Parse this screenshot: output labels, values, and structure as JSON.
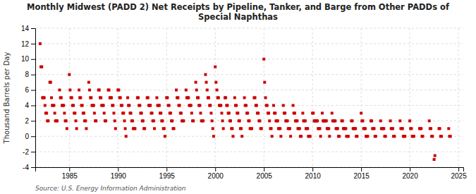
{
  "chart_data": {
    "type": "scatter",
    "title": "Monthly Midwest (PADD 2) Net Receipts by Pipeline, Tanker, and Barge from Other PADDs of\nSpecial Naphthas",
    "ylabel": "Thousand Barrels per Day",
    "source": "Source: U.S. Energy Information Administration",
    "color": "#cc0000",
    "marker": "square",
    "grid": true,
    "xlim": [
      1981.5,
      2025.5
    ],
    "ylim": [
      -4,
      14
    ],
    "xticks": [
      1985,
      1990,
      1995,
      2000,
      2005,
      2010,
      2015,
      2020,
      2025
    ],
    "yticks": [
      -4,
      -2,
      0,
      2,
      4,
      6,
      8,
      10,
      12,
      14
    ],
    "x": [
      1982.0,
      1982.08,
      1982.17,
      1982.25,
      1982.33,
      1982.42,
      1982.5,
      1982.58,
      1982.67,
      1982.75,
      1982.83,
      1983.0,
      1983.08,
      1983.17,
      1983.25,
      1983.33,
      1983.42,
      1983.5,
      1983.58,
      1983.67,
      1983.75,
      1984.0,
      1984.08,
      1984.17,
      1984.25,
      1984.33,
      1984.42,
      1984.5,
      1984.58,
      1984.67,
      1984.75,
      1985.0,
      1985.08,
      1985.17,
      1985.25,
      1985.33,
      1985.42,
      1985.5,
      1985.58,
      1985.67,
      1985.75,
      1986.0,
      1986.08,
      1986.17,
      1986.25,
      1986.33,
      1986.42,
      1986.5,
      1986.58,
      1986.67,
      1986.75,
      1987.0,
      1987.08,
      1987.17,
      1987.25,
      1987.33,
      1987.42,
      1987.5,
      1987.58,
      1987.67,
      1987.75,
      1988.0,
      1988.08,
      1988.17,
      1988.25,
      1988.33,
      1988.42,
      1988.5,
      1988.58,
      1988.67,
      1988.75,
      1989.0,
      1989.08,
      1989.17,
      1989.25,
      1989.33,
      1989.42,
      1989.5,
      1989.58,
      1989.67,
      1989.75,
      1990.0,
      1990.08,
      1990.17,
      1990.25,
      1990.33,
      1990.42,
      1990.5,
      1990.58,
      1990.67,
      1990.75,
      1990.83,
      1991.0,
      1991.08,
      1991.17,
      1991.25,
      1991.33,
      1991.42,
      1991.5,
      1991.58,
      1991.67,
      1991.75,
      1992.0,
      1992.08,
      1992.17,
      1992.25,
      1992.33,
      1992.42,
      1992.5,
      1992.58,
      1992.67,
      1992.75,
      1993.0,
      1993.08,
      1993.17,
      1993.25,
      1993.33,
      1993.42,
      1993.5,
      1993.58,
      1993.67,
      1993.75,
      1994.0,
      1994.08,
      1994.17,
      1994.25,
      1994.33,
      1994.42,
      1994.5,
      1994.58,
      1994.67,
      1994.75,
      1994.83,
      1995.0,
      1995.08,
      1995.17,
      1995.25,
      1995.33,
      1995.42,
      1995.5,
      1995.58,
      1995.67,
      1995.75,
      1996.0,
      1996.08,
      1996.17,
      1996.25,
      1996.33,
      1996.42,
      1996.5,
      1996.58,
      1996.67,
      1996.75,
      1997.0,
      1997.08,
      1997.17,
      1997.25,
      1997.33,
      1997.42,
      1997.5,
      1997.58,
      1997.67,
      1997.75,
      1998.0,
      1998.08,
      1998.17,
      1998.25,
      1998.33,
      1998.42,
      1998.5,
      1998.58,
      1998.67,
      1998.75,
      1999.0,
      1999.08,
      1999.17,
      1999.25,
      1999.33,
      1999.42,
      1999.5,
      1999.58,
      1999.67,
      1999.75,
      1999.83,
      2000.0,
      2000.08,
      2000.17,
      2000.25,
      2000.33,
      2000.42,
      2000.5,
      2000.58,
      2000.67,
      2000.75,
      2000.83,
      2001.0,
      2001.08,
      2001.17,
      2001.25,
      2001.33,
      2001.42,
      2001.5,
      2001.58,
      2001.67,
      2001.75,
      2001.83,
      2002.0,
      2002.08,
      2002.17,
      2002.25,
      2002.33,
      2002.42,
      2002.5,
      2002.58,
      2002.67,
      2002.75,
      2003.0,
      2003.08,
      2003.17,
      2003.25,
      2003.33,
      2003.42,
      2003.5,
      2003.58,
      2003.67,
      2003.75,
      2004.0,
      2004.08,
      2004.17,
      2004.25,
      2004.33,
      2004.42,
      2004.5,
      2004.58,
      2004.67,
      2004.75,
      2005.0,
      2005.08,
      2005.17,
      2005.25,
      2005.33,
      2005.42,
      2005.5,
      2005.58,
      2005.67,
      2005.75,
      2005.83,
      2006.0,
      2006.08,
      2006.17,
      2006.25,
      2006.33,
      2006.42,
      2006.5,
      2006.58,
      2006.67,
      2006.75,
      2007.0,
      2007.08,
      2007.17,
      2007.25,
      2007.33,
      2007.42,
      2007.5,
      2007.58,
      2007.67,
      2007.75,
      2008.0,
      2008.08,
      2008.17,
      2008.25,
      2008.33,
      2008.42,
      2008.5,
      2008.58,
      2008.67,
      2008.75,
      2008.83,
      2009.0,
      2009.08,
      2009.17,
      2009.25,
      2009.33,
      2009.42,
      2009.5,
      2009.58,
      2009.67,
      2009.75,
      2010.0,
      2010.08,
      2010.17,
      2010.25,
      2010.33,
      2010.42,
      2010.5,
      2010.58,
      2010.67,
      2010.75,
      2010.83,
      2011.0,
      2011.08,
      2011.17,
      2011.25,
      2011.33,
      2011.42,
      2011.5,
      2011.58,
      2011.67,
      2011.75,
      2012.0,
      2012.08,
      2012.17,
      2012.25,
      2012.33,
      2012.42,
      2012.5,
      2012.58,
      2012.67,
      2012.75,
      2013.0,
      2013.08,
      2013.17,
      2013.25,
      2013.33,
      2013.42,
      2013.5,
      2013.58,
      2013.67,
      2014.0,
      2014.08,
      2014.17,
      2014.25,
      2014.33,
      2014.42,
      2014.5,
      2014.58,
      2015.0,
      2015.08,
      2015.17,
      2015.25,
      2015.33,
      2015.42,
      2015.5,
      2015.58,
      2015.67,
      2016.0,
      2016.08,
      2016.17,
      2016.25,
      2016.33,
      2016.42,
      2016.5,
      2017.0,
      2017.08,
      2017.17,
      2017.25,
      2017.33,
      2017.42,
      2017.5,
      2018.0,
      2018.08,
      2018.17,
      2018.25,
      2018.33,
      2018.42,
      2019.0,
      2019.08,
      2019.17,
      2019.25,
      2019.33,
      2019.42,
      2019.5,
      2020.0,
      2020.08,
      2020.17,
      2020.25,
      2020.33,
      2020.42,
      2021.0,
      2021.08,
      2021.17,
      2021.25,
      2021.33,
      2022.0,
      2022.08,
      2022.17,
      2022.25,
      2022.33,
      2022.5,
      2022.58,
      2023.0,
      2023.08,
      2023.17,
      2023.25,
      2024.0,
      2024.08,
      2024.17
    ],
    "values": [
      12.0,
      9.0,
      9.0,
      5.0,
      5.0,
      5.0,
      4.0,
      3.0,
      3.0,
      2.0,
      2.0,
      7.0,
      7.0,
      5.0,
      4.0,
      4.0,
      4.0,
      3.0,
      2.0,
      2.0,
      2.0,
      6.0,
      5.0,
      5.0,
      4.0,
      4.0,
      4.0,
      3.0,
      2.0,
      2.0,
      1.0,
      8.0,
      6.0,
      5.0,
      5.0,
      4.0,
      4.0,
      3.0,
      3.0,
      2.0,
      1.0,
      6.0,
      5.0,
      5.0,
      4.0,
      4.0,
      3.0,
      3.0,
      2.0,
      2.0,
      1.0,
      7.0,
      6.0,
      5.0,
      5.0,
      4.0,
      4.0,
      4.0,
      3.0,
      2.0,
      2.0,
      6.0,
      6.0,
      5.0,
      5.0,
      4.0,
      4.0,
      4.0,
      3.0,
      2.0,
      2.0,
      6.0,
      6.0,
      5.0,
      5.0,
      5.0,
      4.0,
      4.0,
      3.0,
      2.0,
      1.0,
      6.0,
      6.0,
      5.0,
      5.0,
      4.0,
      4.0,
      3.0,
      3.0,
      2.0,
      1.0,
      0.0,
      5.0,
      4.0,
      4.0,
      3.0,
      3.0,
      2.0,
      2.0,
      1.0,
      1.0,
      1.0,
      5.0,
      5.0,
      4.0,
      4.0,
      3.0,
      3.0,
      2.0,
      2.0,
      1.0,
      1.0,
      5.0,
      5.0,
      4.0,
      4.0,
      4.0,
      3.0,
      3.0,
      2.0,
      2.0,
      1.0,
      5.0,
      4.0,
      4.0,
      4.0,
      3.0,
      3.0,
      2.0,
      2.0,
      1.0,
      1.0,
      0.0,
      5.0,
      5.0,
      4.0,
      4.0,
      3.0,
      3.0,
      2.0,
      2.0,
      1.0,
      1.0,
      6.0,
      5.0,
      5.0,
      4.0,
      4.0,
      3.0,
      3.0,
      2.0,
      2.0,
      2.0,
      6.0,
      5.0,
      5.0,
      5.0,
      4.0,
      4.0,
      4.0,
      3.0,
      2.0,
      2.0,
      7.0,
      6.0,
      5.0,
      5.0,
      4.0,
      4.0,
      3.0,
      2.0,
      2.0,
      2.0,
      8.0,
      7.0,
      6.0,
      5.0,
      5.0,
      4.0,
      4.0,
      3.0,
      2.0,
      1.0,
      0.0,
      9.0,
      7.0,
      6.0,
      5.0,
      5.0,
      4.0,
      4.0,
      4.0,
      3.0,
      2.0,
      1.0,
      5.0,
      5.0,
      4.0,
      4.0,
      3.0,
      3.0,
      2.0,
      2.0,
      1.0,
      1.0,
      0.0,
      5.0,
      4.0,
      4.0,
      3.0,
      3.0,
      2.0,
      2.0,
      1.0,
      1.0,
      0.0,
      5.0,
      4.0,
      4.0,
      3.0,
      3.0,
      2.0,
      2.0,
      1.0,
      1.0,
      1.0,
      5.0,
      5.0,
      4.0,
      4.0,
      3.0,
      3.0,
      2.0,
      2.0,
      1.0,
      1.0,
      10.0,
      7.0,
      5.0,
      4.0,
      4.0,
      3.0,
      3.0,
      2.0,
      1.0,
      1.0,
      0.0,
      4.0,
      3.0,
      3.0,
      2.0,
      2.0,
      2.0,
      1.0,
      1.0,
      1.0,
      0.0,
      4.0,
      3.0,
      3.0,
      2.0,
      2.0,
      2.0,
      1.0,
      1.0,
      1.0,
      0.0,
      4.0,
      3.0,
      3.0,
      2.0,
      2.0,
      2.0,
      1.0,
      1.0,
      1.0,
      0.0,
      0.0,
      3.0,
      2.0,
      2.0,
      2.0,
      1.0,
      1.0,
      1.0,
      0.0,
      0.0,
      0.0,
      3.0,
      3.0,
      2.0,
      2.0,
      2.0,
      2.0,
      2.0,
      1.0,
      1.0,
      1.0,
      0.0,
      3.0,
      2.0,
      2.0,
      2.0,
      2.0,
      2.0,
      1.0,
      1.0,
      1.0,
      0.0,
      3.0,
      2.0,
      2.0,
      2.0,
      2.0,
      1.0,
      1.0,
      1.0,
      0.0,
      0.0,
      2.0,
      2.0,
      1.0,
      1.0,
      1.0,
      1.0,
      0.0,
      0.0,
      0.0,
      2.0,
      2.0,
      1.0,
      1.0,
      1.0,
      1.0,
      0.0,
      0.0,
      3.0,
      2.0,
      2.0,
      1.0,
      1.0,
      1.0,
      0.0,
      0.0,
      0.0,
      2.0,
      2.0,
      1.0,
      1.0,
      1.0,
      0.0,
      0.0,
      2.0,
      1.0,
      1.0,
      1.0,
      1.0,
      0.0,
      0.0,
      2.0,
      1.0,
      1.0,
      1.0,
      0.0,
      0.0,
      2.0,
      1.0,
      1.0,
      1.0,
      0.0,
      0.0,
      0.0,
      2.0,
      1.0,
      1.0,
      0.0,
      0.0,
      0.0,
      1.0,
      1.0,
      1.0,
      0.0,
      0.0,
      2.0,
      1.0,
      1.0,
      0.0,
      0.0,
      -3.0,
      -2.5,
      1.0,
      1.0,
      0.0,
      0.0,
      1.0,
      0.0,
      0.0
    ]
  }
}
